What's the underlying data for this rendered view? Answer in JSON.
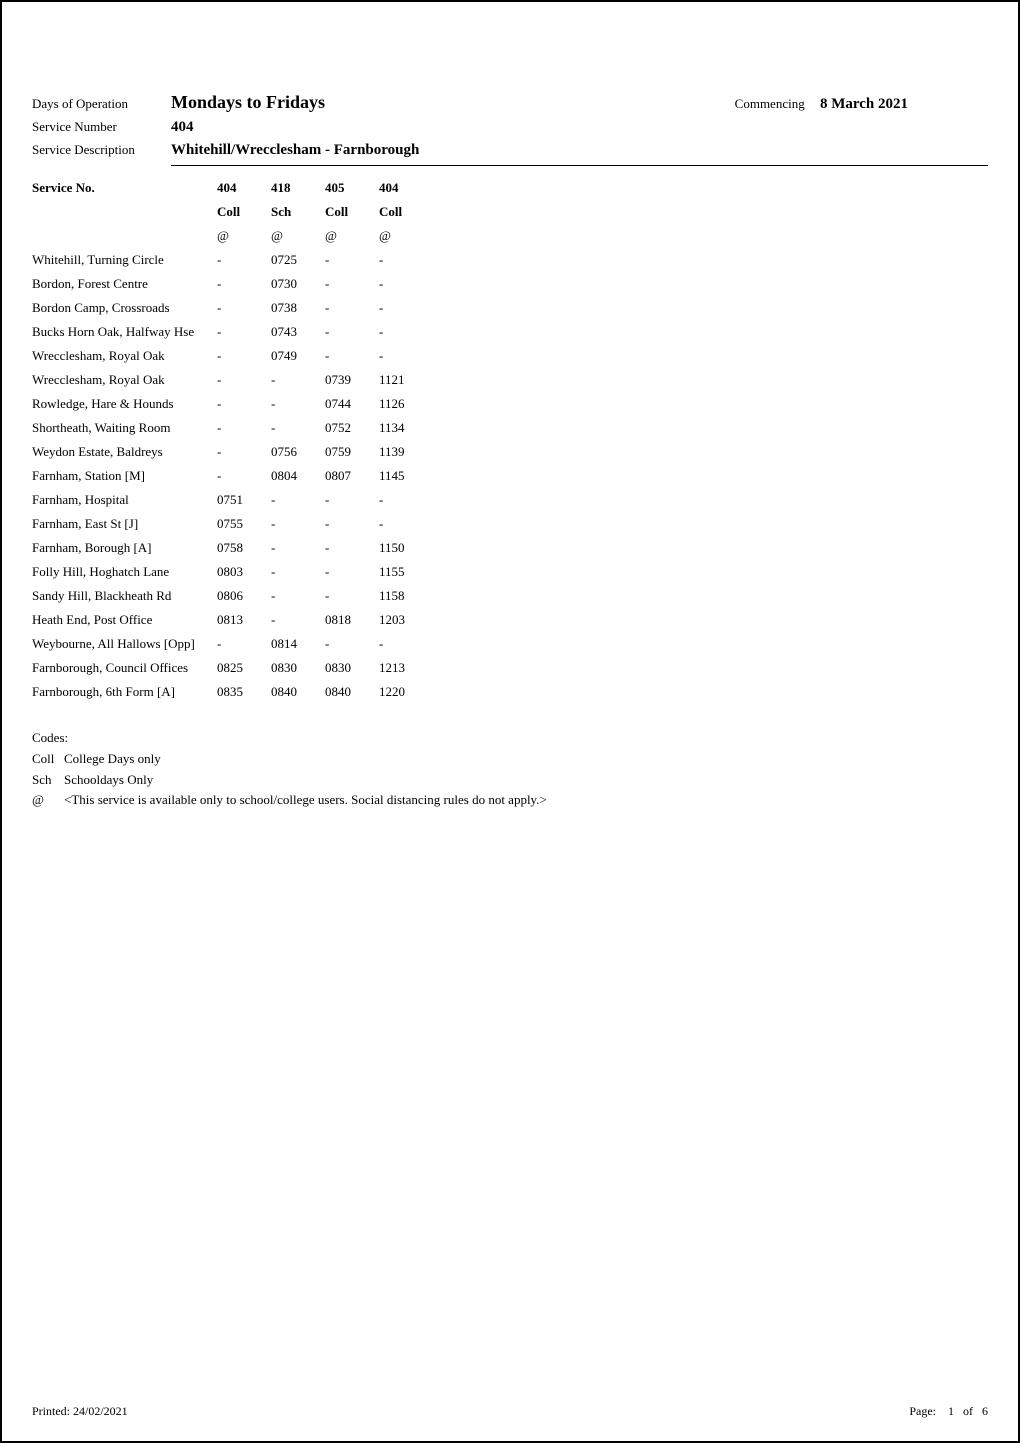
{
  "header": {
    "days_label": "Days of Operation",
    "days_value": "Mondays to Fridays",
    "commencing_label": "Commencing",
    "commencing_value": "8 March 2021",
    "service_number_label": "Service Number",
    "service_number_value": "404",
    "service_desc_label": "Service Description",
    "service_desc_value": "Whitehill/Wrecclesham - Farnborough"
  },
  "timetable": {
    "service_no_label": "Service No.",
    "columns": [
      "404",
      "418",
      "405",
      "404"
    ],
    "col_tags": [
      "Coll",
      "Sch",
      "Coll",
      "Coll"
    ],
    "col_marks": [
      "@",
      "@",
      "@",
      "@"
    ],
    "rows": [
      {
        "stop": "Whitehill, Turning Circle",
        "times": [
          "-",
          "0725",
          "-",
          "-"
        ]
      },
      {
        "stop": "Bordon, Forest Centre",
        "times": [
          "-",
          "0730",
          "-",
          "-"
        ]
      },
      {
        "stop": "Bordon Camp, Crossroads",
        "times": [
          "-",
          "0738",
          "-",
          "-"
        ]
      },
      {
        "stop": "Bucks Horn Oak, Halfway Hse",
        "times": [
          "-",
          "0743",
          "-",
          "-"
        ]
      },
      {
        "stop": "Wrecclesham, Royal Oak",
        "times": [
          "-",
          "0749",
          "-",
          "-"
        ]
      },
      {
        "stop": "Wrecclesham, Royal Oak",
        "times": [
          "-",
          "-",
          "0739",
          "1121"
        ]
      },
      {
        "stop": "Rowledge, Hare & Hounds",
        "times": [
          "-",
          "-",
          "0744",
          "1126"
        ]
      },
      {
        "stop": "Shortheath, Waiting Room",
        "times": [
          "-",
          "-",
          "0752",
          "1134"
        ]
      },
      {
        "stop": "Weydon Estate, Baldreys",
        "times": [
          "-",
          "0756",
          "0759",
          "1139"
        ]
      },
      {
        "stop": "Farnham, Station [M]",
        "times": [
          "-",
          "0804",
          "0807",
          "1145"
        ]
      },
      {
        "stop": "Farnham, Hospital",
        "times": [
          "0751",
          "-",
          "-",
          "-"
        ]
      },
      {
        "stop": "Farnham, East St [J]",
        "times": [
          "0755",
          "-",
          "-",
          "-"
        ]
      },
      {
        "stop": "Farnham, Borough [A]",
        "times": [
          "0758",
          "-",
          "-",
          "1150"
        ]
      },
      {
        "stop": "Folly Hill, Hoghatch Lane",
        "times": [
          "0803",
          "-",
          "-",
          "1155"
        ]
      },
      {
        "stop": "Sandy Hill, Blackheath Rd",
        "times": [
          "0806",
          "-",
          "-",
          "1158"
        ]
      },
      {
        "stop": "Heath End, Post Office",
        "times": [
          "0813",
          "-",
          "0818",
          "1203"
        ]
      },
      {
        "stop": "Weybourne, All Hallows [Opp]",
        "times": [
          "-",
          "0814",
          "-",
          "-"
        ]
      },
      {
        "stop": "Farnborough, Council Offices",
        "times": [
          "0825",
          "0830",
          "0830",
          "1213"
        ]
      },
      {
        "stop": "Farnborough, 6th Form [A]",
        "times": [
          "0835",
          "0840",
          "0840",
          "1220"
        ]
      }
    ]
  },
  "codes": {
    "heading": "Codes:",
    "lines": [
      {
        "key": "Coll",
        "desc": "College Days only"
      },
      {
        "key": "Sch",
        "desc": "Schooldays Only"
      },
      {
        "key": "@",
        "desc": "<This service is available only to school/college users. Social distancing rules do not apply.>"
      }
    ]
  },
  "footer": {
    "printed_label": "Printed:",
    "printed_date": "24/02/2021",
    "page_label": "Page:",
    "page_current": "1",
    "page_of": "of",
    "page_total": "6"
  }
}
